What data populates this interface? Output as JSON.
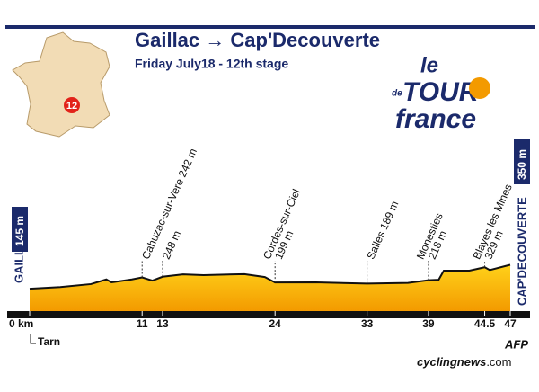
{
  "chart_data": {
    "type": "area",
    "title": "Gaillac → Cap'Decouverte",
    "subtitle": "Friday July18 - 12th stage",
    "start_name": "GAILLAC",
    "start_elevation": "145 m",
    "finish_name": "CAP'DECOUVERTE",
    "finish_elevation": "350 m",
    "x": [
      0,
      3,
      6,
      7.5,
      8,
      10,
      11,
      12,
      13,
      15,
      17,
      21,
      23,
      24,
      28,
      33,
      37,
      39,
      40,
      40.5,
      43,
      44.5,
      45,
      47
    ],
    "values": [
      145,
      160,
      185,
      225,
      200,
      225,
      242,
      215,
      248,
      268,
      262,
      270,
      245,
      199,
      200,
      189,
      195,
      218,
      222,
      300,
      300,
      329,
      305,
      350
    ],
    "xlim": [
      0,
      47
    ],
    "xticks": [
      {
        "value": 0,
        "label": "0 km"
      },
      11,
      13,
      24,
      33,
      39,
      44.5,
      47
    ],
    "waypoints": [
      null,
      [
        "Cahuzac-sur-Vere 242 m"
      ],
      [
        "248 m"
      ],
      [
        "Cordes-sur-Ciel",
        "199 m"
      ],
      [
        "Salles 189 m"
      ],
      [
        "Monesties",
        "218 m"
      ],
      [
        "Blayes les Mines",
        "329 m"
      ],
      null
    ],
    "fill_top": "#ffd21a",
    "fill_bottom": "#f39a00",
    "line_color": "#111111"
  },
  "map_stage": "12",
  "logo": {
    "le": "le",
    "de": "de",
    "tour": "TOUR",
    "france": "france"
  },
  "river": "Tarn",
  "credit": "AFP",
  "source": {
    "site": "cycling",
    "news": "news",
    "domain": ".com"
  }
}
